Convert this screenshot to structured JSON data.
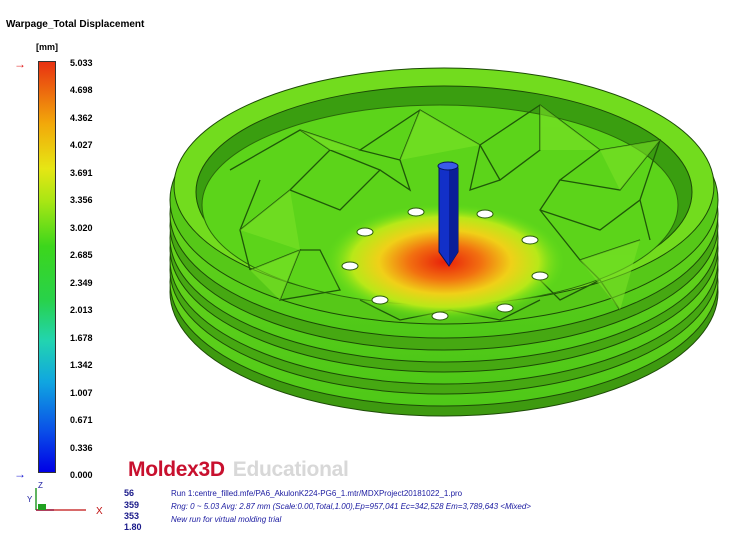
{
  "legend": {
    "title": "Warpage_Total Displacement",
    "unit": "[mm]",
    "ticks": [
      "5.033",
      "4.698",
      "4.362",
      "4.027",
      "3.691",
      "3.356",
      "3.020",
      "2.685",
      "2.349",
      "2.013",
      "1.678",
      "1.342",
      "1.007",
      "0.671",
      "0.336",
      "0.000"
    ]
  },
  "logo": {
    "brand": "Moldex",
    "brand_3d": "3D",
    "edition": "Educational"
  },
  "stats": [
    "56",
    "359",
    "353",
    "1.80"
  ],
  "info": {
    "run": "Run 1:centre_filled.mfe/PA6_AkulonK224-PG6_1.mtr/MDXProject20181022_1.pro",
    "range": "Rng: 0 ~ 5.03   Avg: 2.87 mm (Scale:0.00,Total,1.00),Ep=957,041 Ec=342,528 Em=3,789,643  <Mixed>",
    "note": "New run for virtual molding trial"
  },
  "axis": {
    "z": "Z",
    "y": "Y",
    "x": "X"
  },
  "colors": {
    "max": "#e83212",
    "min": "#0000e6",
    "logo": "#c8102e"
  }
}
